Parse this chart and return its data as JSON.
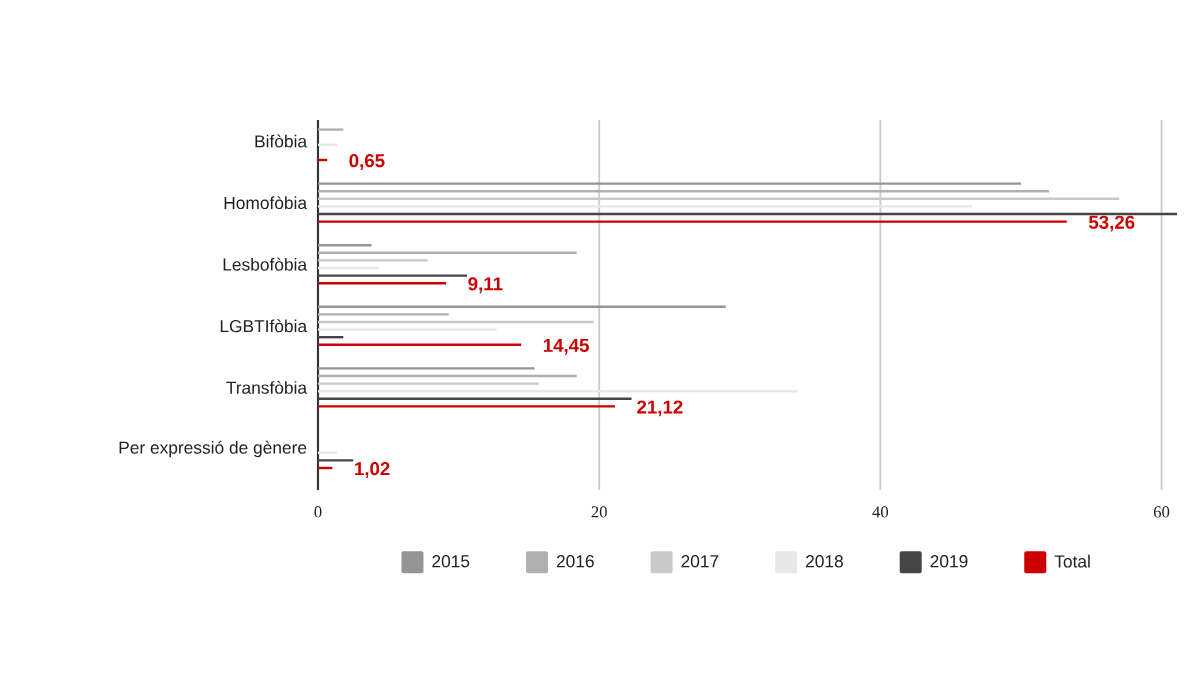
{
  "chart_data": {
    "type": "bar",
    "orientation": "horizontal",
    "categories": [
      "Bifòbia",
      "Homofòbia",
      "Lesbofòbia",
      "LGBTIfòbia",
      "Transfòbia",
      "Per expressió de gènere"
    ],
    "series": [
      {
        "name": "2015",
        "color": "#959595",
        "values": [
          null,
          50,
          3.8,
          29,
          15.4,
          null
        ]
      },
      {
        "name": "2016",
        "color": "#b0b0b0",
        "values": [
          1.8,
          52,
          18.4,
          9.3,
          18.4,
          null
        ]
      },
      {
        "name": "2017",
        "color": "#c9c9c9",
        "values": [
          null,
          57,
          7.8,
          19.6,
          15.7,
          null
        ]
      },
      {
        "name": "2018",
        "color": "#e8e8e8",
        "values": [
          1.35,
          46.5,
          4.3,
          12.7,
          34.1,
          1.35
        ]
      },
      {
        "name": "2019",
        "color": "#454545",
        "values": [
          null,
          61.1,
          10.6,
          1.8,
          22.3,
          2.5
        ]
      },
      {
        "name": "Total",
        "color": "#cc0000",
        "values": [
          0.65,
          53.26,
          9.11,
          14.45,
          21.12,
          1.02
        ],
        "value_labels": [
          "0,65",
          "53,26",
          "9,11",
          "14,45",
          "21,12",
          "1,02"
        ]
      }
    ],
    "xlim": [
      0,
      61.1
    ],
    "xticks": [
      0,
      20,
      40,
      60
    ],
    "grid": "x",
    "legend": "bottom"
  }
}
